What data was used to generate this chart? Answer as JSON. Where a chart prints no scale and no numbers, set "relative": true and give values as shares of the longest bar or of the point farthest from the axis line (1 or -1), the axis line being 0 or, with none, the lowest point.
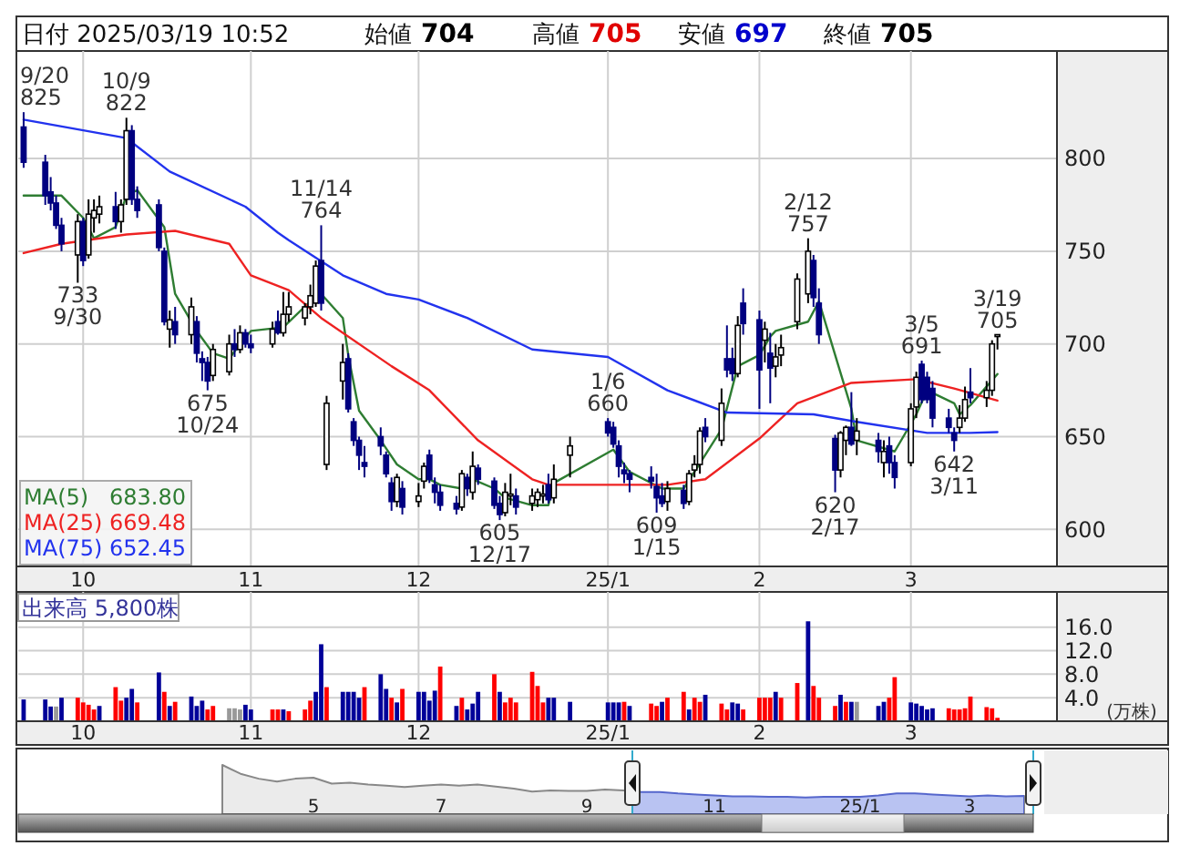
{
  "chart_data": [
    {
      "type": "candlestick",
      "title": "日付 2025/03/19 10:52",
      "x": [
        "2024-09-20",
        "2024-09-24",
        "2024-09-25",
        "2024-09-26",
        "2024-09-27",
        "2024-09-30",
        "2024-10-01",
        "2024-10-02",
        "2024-10-03",
        "2024-10-04",
        "2024-10-07",
        "2024-10-08",
        "2024-10-09",
        "2024-10-10",
        "2024-10-11",
        "2024-10-15",
        "2024-10-16",
        "2024-10-17",
        "2024-10-18",
        "2024-10-21",
        "2024-10-22",
        "2024-10-23",
        "2024-10-24",
        "2024-10-25",
        "2024-10-28",
        "2024-10-29",
        "2024-10-30",
        "2024-10-31",
        "2024-11-01",
        "2024-11-05",
        "2024-11-06",
        "2024-11-07",
        "2024-11-08",
        "2024-11-11",
        "2024-11-12",
        "2024-11-13",
        "2024-11-14",
        "2024-11-15",
        "2024-11-18",
        "2024-11-19",
        "2024-11-20",
        "2024-11-21",
        "2024-11-22",
        "2024-11-25",
        "2024-11-26",
        "2024-11-27",
        "2024-11-28",
        "2024-11-29",
        "2024-12-02",
        "2024-12-03",
        "2024-12-04",
        "2024-12-05",
        "2024-12-06",
        "2024-12-09",
        "2024-12-10",
        "2024-12-11",
        "2024-12-12",
        "2024-12-13",
        "2024-12-16",
        "2024-12-17",
        "2024-12-18",
        "2024-12-19",
        "2024-12-20",
        "2024-12-23",
        "2024-12-24",
        "2024-12-25",
        "2024-12-26",
        "2024-12-27",
        "2024-12-30",
        "2025-01-06",
        "2025-01-07",
        "2025-01-08",
        "2025-01-09",
        "2025-01-10",
        "2025-01-14",
        "2025-01-15",
        "2025-01-16",
        "2025-01-17",
        "2025-01-20",
        "2025-01-21",
        "2025-01-22",
        "2025-01-23",
        "2025-01-24",
        "2025-01-27",
        "2025-01-28",
        "2025-01-29",
        "2025-01-30",
        "2025-01-31",
        "2025-02-03",
        "2025-02-04",
        "2025-02-05",
        "2025-02-06",
        "2025-02-07",
        "2025-02-10",
        "2025-02-12",
        "2025-02-13",
        "2025-02-14",
        "2025-02-17",
        "2025-02-18",
        "2025-02-19",
        "2025-02-20",
        "2025-02-21",
        "2025-02-25",
        "2025-02-26",
        "2025-02-27",
        "2025-02-28",
        "2025-03-03",
        "2025-03-04",
        "2025-03-05",
        "2025-03-06",
        "2025-03-07",
        "2025-03-10",
        "2025-03-11",
        "2025-03-12",
        "2025-03-13",
        "2025-03-14",
        "2025-03-17",
        "2025-03-18",
        "2025-03-19"
      ],
      "ohlc": [
        [
          817,
          825,
          795,
          798
        ],
        [
          798,
          802,
          775,
          780
        ],
        [
          782,
          790,
          772,
          776
        ],
        [
          776,
          780,
          762,
          764
        ],
        [
          764,
          768,
          750,
          754
        ],
        [
          748,
          770,
          733,
          766
        ],
        [
          766,
          768,
          742,
          745
        ],
        [
          748,
          778,
          746,
          770
        ],
        [
          768,
          778,
          760,
          772
        ],
        [
          770,
          780,
          765,
          774
        ],
        [
          774,
          782,
          762,
          766
        ],
        [
          766,
          778,
          760,
          775
        ],
        [
          778,
          822,
          775,
          815
        ],
        [
          815,
          818,
          775,
          778
        ],
        [
          778,
          785,
          768,
          772
        ],
        [
          775,
          778,
          750,
          752
        ],
        [
          750,
          752,
          710,
          712
        ],
        [
          708,
          718,
          698,
          713
        ],
        [
          712,
          720,
          700,
          705
        ],
        [
          705,
          725,
          700,
          720
        ],
        [
          712,
          715,
          690,
          695
        ],
        [
          692,
          696,
          680,
          690
        ],
        [
          690,
          693,
          675,
          680
        ],
        [
          683,
          700,
          680,
          697
        ],
        [
          685,
          705,
          683,
          700
        ],
        [
          700,
          708,
          693,
          697
        ],
        [
          697,
          710,
          695,
          706
        ],
        [
          706,
          708,
          698,
          700
        ],
        [
          700,
          705,
          695,
          698
        ],
        [
          700,
          712,
          698,
          708
        ],
        [
          712,
          718,
          705,
          706
        ],
        [
          706,
          728,
          704,
          716
        ],
        [
          716,
          728,
          712,
          720
        ],
        [
          714,
          722,
          710,
          720
        ],
        [
          720,
          732,
          716,
          726
        ],
        [
          722,
          745,
          720,
          742
        ],
        [
          745,
          764,
          718,
          722
        ],
        [
          635,
          672,
          632,
          668
        ],
        [
          680,
          700,
          670,
          690
        ],
        [
          692,
          695,
          663,
          665
        ],
        [
          658,
          660,
          645,
          648
        ],
        [
          648,
          650,
          632,
          640
        ],
        [
          636,
          645,
          628,
          634
        ],
        [
          650,
          655,
          640,
          645
        ],
        [
          640,
          642,
          628,
          630
        ],
        [
          625,
          628,
          610,
          615
        ],
        [
          615,
          630,
          612,
          628
        ],
        [
          622,
          626,
          608,
          612
        ],
        [
          615,
          625,
          612,
          618
        ],
        [
          626,
          636,
          622,
          634
        ],
        [
          640,
          643,
          625,
          627
        ],
        [
          624,
          628,
          614,
          620
        ],
        [
          620,
          624,
          610,
          613
        ],
        [
          614,
          618,
          608,
          611
        ],
        [
          612,
          632,
          610,
          630
        ],
        [
          628,
          630,
          618,
          622
        ],
        [
          620,
          642,
          616,
          634
        ],
        [
          633,
          635,
          624,
          627
        ],
        [
          626,
          628,
          611,
          613
        ],
        [
          614,
          618,
          605,
          608
        ],
        [
          609,
          625,
          607,
          620
        ],
        [
          618,
          630,
          613,
          619
        ],
        [
          618,
          622,
          608,
          612
        ],
        [
          614,
          622,
          610,
          618
        ],
        [
          616,
          622,
          612,
          620
        ],
        [
          618,
          624,
          614,
          619
        ],
        [
          624,
          630,
          614,
          616
        ],
        [
          617,
          635,
          614,
          627
        ],
        [
          640,
          650,
          628,
          645
        ],
        [
          658,
          660,
          650,
          652
        ],
        [
          655,
          658,
          644,
          646
        ],
        [
          645,
          648,
          628,
          634
        ],
        [
          632,
          636,
          625,
          630
        ],
        [
          630,
          632,
          620,
          627
        ],
        [
          628,
          634,
          622,
          626
        ],
        [
          623,
          630,
          609,
          617
        ],
        [
          618,
          625,
          612,
          614
        ],
        [
          615,
          626,
          610,
          622
        ],
        [
          621,
          624,
          611,
          614
        ],
        [
          615,
          632,
          613,
          630
        ],
        [
          632,
          640,
          628,
          635
        ],
        [
          635,
          655,
          630,
          653
        ],
        [
          655,
          660,
          647,
          650
        ],
        [
          648,
          676,
          645,
          668
        ],
        [
          692,
          710,
          682,
          686
        ],
        [
          692,
          698,
          680,
          684
        ],
        [
          684,
          715,
          682,
          710
        ],
        [
          722,
          730,
          705,
          711
        ],
        [
          713,
          718,
          665,
          686
        ],
        [
          702,
          712,
          690,
          708
        ],
        [
          695,
          706,
          668,
          687
        ],
        [
          688,
          700,
          682,
          693
        ],
        [
          694,
          705,
          688,
          698
        ],
        [
          712,
          738,
          708,
          735
        ],
        [
          727,
          757,
          722,
          750
        ],
        [
          745,
          748,
          720,
          725
        ],
        [
          722,
          730,
          700,
          705
        ],
        [
          649,
          651,
          620,
          632
        ],
        [
          632,
          653,
          628,
          652
        ],
        [
          648,
          656,
          640,
          655
        ],
        [
          655,
          674,
          645,
          646
        ],
        [
          648,
          660,
          640,
          653
        ],
        [
          648,
          652,
          636,
          642
        ],
        [
          636,
          648,
          628,
          642
        ],
        [
          645,
          650,
          630,
          636
        ],
        [
          636,
          640,
          622,
          628
        ],
        [
          636,
          668,
          634,
          665
        ],
        [
          666,
          685,
          660,
          682
        ],
        [
          689,
          691,
          668,
          670
        ],
        [
          682,
          685,
          668,
          670
        ],
        [
          676,
          680,
          655,
          660
        ],
        [
          660,
          665,
          652,
          655
        ],
        [
          652,
          655,
          642,
          648
        ],
        [
          655,
          667,
          652,
          660
        ],
        [
          660,
          677,
          658,
          670
        ],
        [
          674,
          687,
          668,
          671
        ],
        [
          671,
          680,
          666,
          675
        ],
        [
          675,
          702,
          672,
          700
        ],
        [
          704,
          705,
          697,
          705
        ]
      ],
      "series": [
        {
          "name": "MA(5)",
          "type": "line",
          "color": "#2e7d32",
          "x": [
            "2024-09-20",
            "2024-09-24",
            "2024-09-27",
            "2024-10-01",
            "2024-10-03",
            "2024-10-07",
            "2024-10-09",
            "2024-10-11",
            "2024-10-16",
            "2024-10-18",
            "2024-10-22",
            "2024-10-25",
            "2024-10-28",
            "2024-10-30",
            "2024-11-01",
            "2024-11-07",
            "2024-11-12",
            "2024-11-14",
            "2024-11-18",
            "2024-11-19",
            "2024-11-21",
            "2024-11-25",
            "2024-11-28",
            "2024-12-02",
            "2024-12-04",
            "2024-12-06",
            "2024-12-10",
            "2024-12-12",
            "2024-12-16",
            "2024-12-18",
            "2024-12-23",
            "2024-12-26",
            "2024-12-27",
            "2025-01-07",
            "2025-01-10",
            "2025-01-16",
            "2025-01-20",
            "2025-01-22",
            "2025-01-27",
            "2025-01-30",
            "2025-02-03",
            "2025-02-05",
            "2025-02-06",
            "2025-02-12",
            "2025-02-14",
            "2025-02-20",
            "2025-02-21",
            "2025-02-28",
            "2025-03-04",
            "2025-03-06",
            "2025-03-11",
            "2025-03-12",
            "2025-03-14",
            "2025-03-19"
          ],
          "values": [
            780,
            780,
            780,
            768,
            757,
            763,
            780,
            783,
            763,
            727,
            707,
            695,
            692,
            700,
            707,
            709,
            723,
            727,
            714,
            694,
            664,
            648,
            635,
            627,
            627,
            624,
            622,
            627,
            622,
            617,
            613,
            613,
            625,
            643,
            631,
            622,
            622,
            631,
            654,
            688,
            694,
            704,
            707,
            712,
            723,
            665,
            648,
            642,
            662,
            675,
            668,
            662,
            667,
            683.8
          ]
        },
        {
          "name": "MA(25)",
          "type": "line",
          "color": "#ee2222",
          "x": [
            "2024-09-20",
            "2024-09-27",
            "2024-10-09",
            "2024-10-18",
            "2024-10-28",
            "2024-11-01",
            "2024-11-08",
            "2024-11-14",
            "2024-11-27",
            "2024-12-04",
            "2024-12-13",
            "2024-12-23",
            "2024-12-26",
            "2025-01-17",
            "2025-01-24",
            "2025-02-03",
            "2025-02-10",
            "2025-02-20",
            "2025-03-04",
            "2025-03-11",
            "2025-03-19"
          ],
          "values": [
            749,
            754,
            759,
            761,
            754,
            737,
            729,
            714,
            688,
            675,
            648,
            627,
            624,
            624,
            627,
            649,
            668,
            679,
            681,
            676,
            669.48
          ]
        },
        {
          "name": "MA(75)",
          "type": "line",
          "color": "#2233ee",
          "x": [
            "2024-09-20",
            "2024-10-09",
            "2024-10-17",
            "2024-10-31",
            "2024-11-06",
            "2024-11-08",
            "2024-11-18",
            "2024-11-26",
            "2024-12-02",
            "2024-12-11",
            "2024-12-23",
            "2025-01-06",
            "2025-01-17",
            "2025-01-28",
            "2025-02-13",
            "2025-02-21",
            "2025-03-06",
            "2025-03-14",
            "2025-03-19"
          ],
          "values": [
            821,
            811,
            793,
            774,
            760,
            756,
            737,
            727,
            724,
            714,
            697,
            693,
            675,
            663,
            662,
            658,
            652,
            652,
            652.45
          ]
        }
      ],
      "ylim": [
        580,
        858
      ],
      "yticks": [
        600,
        650,
        700,
        750,
        800
      ],
      "xlim": [
        "2024-09-19",
        "2025-03-30"
      ],
      "xticks": [
        {
          "value": "2024-10-01",
          "label": "10"
        },
        {
          "value": "2024-11-01",
          "label": "11"
        },
        {
          "value": "2024-12-02",
          "label": "12"
        },
        {
          "value": "2025-01-06",
          "label": "25/1"
        },
        {
          "value": "2025-02-03",
          "label": "2"
        },
        {
          "value": "2025-03-03",
          "label": "3"
        }
      ],
      "grid": true,
      "legend": "bottom left",
      "annotations": [
        "始値 704",
        "高値 705",
        "安値 697",
        "終値 705",
        "683.80",
        "669.48",
        "652.45",
        {
          "text": "9/20\n825",
          "x": "2024-09-20",
          "y": 825
        },
        {
          "text": "733\n9/30",
          "x": "2024-09-30",
          "y": 733
        },
        {
          "text": "10/9\n822",
          "x": "2024-10-09",
          "y": 822
        },
        {
          "text": "675\n10/24",
          "x": "2024-10-24",
          "y": 675
        },
        {
          "text": "11/14\n764",
          "x": "2024-11-14",
          "y": 764
        },
        {
          "text": "605\n12/17",
          "x": "2024-12-17",
          "y": 605
        },
        {
          "text": "1/6\n660",
          "x": "2025-01-06",
          "y": 660
        },
        {
          "text": "609\n1/15",
          "x": "2025-01-15",
          "y": 609
        },
        {
          "text": "2/12\n757",
          "x": "2025-02-12",
          "y": 757
        },
        {
          "text": "620\n2/17",
          "x": "2025-02-17",
          "y": 620
        },
        {
          "text": "3/5\n691",
          "x": "2025-03-05",
          "y": 691
        },
        {
          "text": "642\n3/11",
          "x": "2025-03-11",
          "y": 642
        },
        {
          "text": "3/19\n705",
          "x": "2025-03-19",
          "y": 705
        }
      ]
    },
    {
      "type": "bar",
      "title": "出来高 5,800株",
      "ylabel": "(万株)",
      "x": [
        "2024-09-20",
        "2024-09-24",
        "2024-09-25",
        "2024-09-26",
        "2024-09-27",
        "2024-09-30",
        "2024-10-01",
        "2024-10-02",
        "2024-10-03",
        "2024-10-04",
        "2024-10-07",
        "2024-10-08",
        "2024-10-09",
        "2024-10-10",
        "2024-10-11",
        "2024-10-15",
        "2024-10-16",
        "2024-10-17",
        "2024-10-18",
        "2024-10-21",
        "2024-10-22",
        "2024-10-23",
        "2024-10-24",
        "2024-10-25",
        "2024-10-28",
        "2024-10-29",
        "2024-10-30",
        "2024-10-31",
        "2024-11-01",
        "2024-11-05",
        "2024-11-06",
        "2024-11-07",
        "2024-11-08",
        "2024-11-11",
        "2024-11-12",
        "2024-11-13",
        "2024-11-14",
        "2024-11-15",
        "2024-11-18",
        "2024-11-19",
        "2024-11-20",
        "2024-11-21",
        "2024-11-22",
        "2024-11-25",
        "2024-11-26",
        "2024-11-27",
        "2024-11-28",
        "2024-11-29",
        "2024-12-02",
        "2024-12-03",
        "2024-12-04",
        "2024-12-05",
        "2024-12-06",
        "2024-12-09",
        "2024-12-10",
        "2024-12-11",
        "2024-12-12",
        "2024-12-13",
        "2024-12-16",
        "2024-12-17",
        "2024-12-18",
        "2024-12-19",
        "2024-12-20",
        "2024-12-23",
        "2024-12-24",
        "2024-12-25",
        "2024-12-26",
        "2024-12-27",
        "2024-12-30",
        "2025-01-06",
        "2025-01-07",
        "2025-01-08",
        "2025-01-09",
        "2025-01-10",
        "2025-01-14",
        "2025-01-15",
        "2025-01-16",
        "2025-01-17",
        "2025-01-20",
        "2025-01-21",
        "2025-01-22",
        "2025-01-23",
        "2025-01-24",
        "2025-01-27",
        "2025-01-28",
        "2025-01-29",
        "2025-01-30",
        "2025-01-31",
        "2025-02-03",
        "2025-02-04",
        "2025-02-05",
        "2025-02-06",
        "2025-02-07",
        "2025-02-10",
        "2025-02-12",
        "2025-02-13",
        "2025-02-14",
        "2025-02-17",
        "2025-02-18",
        "2025-02-19",
        "2025-02-20",
        "2025-02-21",
        "2025-02-25",
        "2025-02-26",
        "2025-02-27",
        "2025-02-28",
        "2025-03-03",
        "2025-03-04",
        "2025-03-05",
        "2025-03-06",
        "2025-03-07",
        "2025-03-10",
        "2025-03-11",
        "2025-03-12",
        "2025-03-13",
        "2025-03-14",
        "2025-03-17",
        "2025-03-18",
        "2025-03-19"
      ],
      "values": [
        3.7,
        3.7,
        2.5,
        2.5,
        4.0,
        4.0,
        3.2,
        2.8,
        2.0,
        2.6,
        5.8,
        3.5,
        4.0,
        5.5,
        3.2,
        8.3,
        5.0,
        2.6,
        3.3,
        4.2,
        2.6,
        3.5,
        2.0,
        2.6,
        2.2,
        2.2,
        2.0,
        2.8,
        2.0,
        2.0,
        2.0,
        2.0,
        1.7,
        2.0,
        3.5,
        5.0,
        13.1,
        5.8,
        5.0,
        5.0,
        5.0,
        4.0,
        5.8,
        8.0,
        5.5,
        4.0,
        3.2,
        5.5,
        5.0,
        5.0,
        3.5,
        5.2,
        9.3,
        2.6,
        4.0,
        2.0,
        3.0,
        5.0,
        8.0,
        5.0,
        3.2,
        4.0,
        3.2,
        8.4,
        6.0,
        3.2,
        4.0,
        4.0,
        3.3,
        3.2,
        3.2,
        3.2,
        3.3,
        2.6,
        3.0,
        2.6,
        3.3,
        4.0,
        5.0,
        2.0,
        4.0,
        3.3,
        4.5,
        3.0,
        2.0,
        3.2,
        3.0,
        2.0,
        4.0,
        4.0,
        4.0,
        5.0,
        4.0,
        6.5,
        17.0,
        6.0,
        4.0,
        2.6,
        4.5,
        3.3,
        3.3,
        3.3,
        2.6,
        3.3,
        4.0,
        7.5,
        3.2,
        3.0,
        2.6,
        2.0,
        2.2,
        2.2,
        2.0,
        2.0,
        2.2,
        4.2,
        2.4,
        2.2,
        0.58
      ],
      "colors": [
        "#000099",
        "#000099",
        "#000099",
        "#999999",
        "#000099",
        "#ff0000",
        "#ff0000",
        "#ff0000",
        "#ff0000",
        "#000099",
        "#ff0000",
        "#ff0000",
        "#000099",
        "#000099",
        "#ff0000",
        "#000099",
        "#ff0000",
        "#000099",
        "#ff0000",
        "#000099",
        "#000099",
        "#000099",
        "#ff0000",
        "#ff0000",
        "#999999",
        "#999999",
        "#999999",
        "#000099",
        "#000099",
        "#ff0000",
        "#ff0000",
        "#000099",
        "#ff0000",
        "#ff0000",
        "#ff0000",
        "#000099",
        "#000099",
        "#ff0000",
        "#000099",
        "#000099",
        "#000099",
        "#000099",
        "#ff0000",
        "#000099",
        "#000099",
        "#ff0000",
        "#000099",
        "#ff0000",
        "#000099",
        "#000099",
        "#000099",
        "#000099",
        "#ff0000",
        "#000099",
        "#ff0000",
        "#000099",
        "#000099",
        "#000099",
        "#ff0000",
        "#000099",
        "#ff0000",
        "#ff0000",
        "#ff0000",
        "#ff0000",
        "#ff0000",
        "#ff0000",
        "#000099",
        "#000099",
        "#000099",
        "#000099",
        "#000099",
        "#000099",
        "#ff0000",
        "#000099",
        "#ff0000",
        "#ff0000",
        "#000099",
        "#ff0000",
        "#ff0000",
        "#000099",
        "#ff0000",
        "#ff0000",
        "#000099",
        "#ff0000",
        "#ff0000",
        "#000099",
        "#000099",
        "#ff0000",
        "#ff0000",
        "#ff0000",
        "#ff0000",
        "#000099",
        "#ff0000",
        "#ff0000",
        "#000099",
        "#ff0000",
        "#ff0000",
        "#ff0000",
        "#000099",
        "#ff0000",
        "#000099",
        "#999999",
        "#000099",
        "#000099",
        "#ff0000",
        "#ff0000",
        "#000099",
        "#000099",
        "#000099",
        "#000099",
        "#000099",
        "#ff0000",
        "#ff0000",
        "#ff0000",
        "#ff0000",
        "#ff0000",
        "#ff0000",
        "#ff0000",
        "#ff0000"
      ],
      "ylim": [
        0,
        22
      ],
      "xlim": [
        "2024-09-19",
        "2025-03-30"
      ],
      "yticks": [
        {
          "value": 4,
          "label": "4.0"
        },
        {
          "value": 8,
          "label": "8.0"
        },
        {
          "value": 12,
          "label": "12.0"
        },
        {
          "value": 16,
          "label": "16.0"
        }
      ],
      "xticks": [
        {
          "value": "2024-10-01",
          "label": "10"
        },
        {
          "value": "2024-11-01",
          "label": "11"
        },
        {
          "value": "2024-12-02",
          "label": "12"
        },
        {
          "value": "2025-01-06",
          "label": "25/1"
        },
        {
          "value": "2025-02-03",
          "label": "2"
        },
        {
          "value": "2025-03-03",
          "label": "3"
        }
      ],
      "grid": true
    },
    {
      "type": "area",
      "relative": true,
      "color": "#888888",
      "categories": [
        null,
        null,
        null,
        null,
        null,
        "5",
        null,
        null,
        null,
        null,
        null,
        null,
        "7",
        null,
        null,
        null,
        null,
        null,
        null,
        null,
        "9",
        null,
        null,
        null,
        null,
        null,
        null,
        "11",
        null,
        null,
        null,
        null,
        null,
        null,
        null,
        "25/1",
        null,
        null,
        null,
        null,
        null,
        "3",
        null,
        null,
        null
      ],
      "values": [
        1.0,
        0.82,
        0.72,
        0.66,
        0.72,
        0.74,
        0.62,
        0.64,
        0.6,
        0.58,
        0.55,
        0.58,
        0.6,
        0.58,
        0.6,
        0.56,
        0.52,
        0.46,
        0.48,
        0.47,
        0.47,
        0.5,
        0.48,
        0.45,
        0.45,
        0.42,
        0.4,
        0.38,
        0.36,
        0.36,
        0.35,
        0.35,
        0.34,
        0.35,
        0.35,
        0.35,
        0.38,
        0.42,
        0.42,
        0.4,
        0.38,
        0.36,
        0.38,
        0.36,
        0.37
      ]
    }
  ]
}
